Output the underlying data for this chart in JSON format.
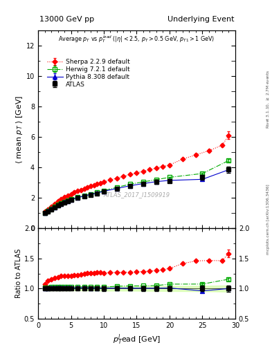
{
  "title_left": "13000 GeV pp",
  "title_right": "Underlying Event",
  "plot_title": "Average $p_T$ vs $p_T^{lead}$ ($|\\eta| < 2.5$, $p_T > 0.5$ GeV, $p_{T1} > 1$ GeV)",
  "ylabel_main": "$\\langle$ mean $p_T$ $\\rangle$ [GeV]",
  "ylabel_ratio": "Ratio to ATLAS",
  "xlabel": "$p_T^l$ead [GeV]",
  "watermark": "ATLAS_2017_I1509919",
  "right_label": "mcplots.cern.ch [arXiv:1306.3436]",
  "right_label2": "Rivet 3.1.10, $\\geq$ 2.7M events",
  "atlas_x": [
    1.0,
    1.5,
    2.0,
    2.5,
    3.0,
    3.5,
    4.0,
    4.5,
    5.0,
    6.0,
    7.0,
    8.0,
    9.0,
    10.0,
    12.0,
    14.0,
    16.0,
    18.0,
    20.0,
    25.0,
    29.0
  ],
  "atlas_y": [
    1.02,
    1.12,
    1.25,
    1.38,
    1.5,
    1.6,
    1.7,
    1.78,
    1.86,
    2.0,
    2.1,
    2.2,
    2.3,
    2.42,
    2.6,
    2.78,
    2.92,
    3.05,
    3.12,
    3.35,
    3.85
  ],
  "atlas_yerr": [
    0.03,
    0.04,
    0.04,
    0.04,
    0.05,
    0.05,
    0.05,
    0.06,
    0.06,
    0.06,
    0.07,
    0.07,
    0.08,
    0.09,
    0.09,
    0.1,
    0.11,
    0.12,
    0.13,
    0.15,
    0.2
  ],
  "herwig_x": [
    1.0,
    1.5,
    2.0,
    2.5,
    3.0,
    3.5,
    4.0,
    4.5,
    5.0,
    6.0,
    7.0,
    8.0,
    9.0,
    10.0,
    12.0,
    14.0,
    16.0,
    18.0,
    20.0,
    25.0,
    29.0
  ],
  "herwig_y": [
    1.03,
    1.14,
    1.28,
    1.42,
    1.54,
    1.65,
    1.74,
    1.82,
    1.9,
    2.05,
    2.16,
    2.26,
    2.36,
    2.48,
    2.7,
    2.9,
    3.05,
    3.2,
    3.35,
    3.6,
    4.45
  ],
  "herwig_yerr": [
    0.01,
    0.01,
    0.01,
    0.01,
    0.01,
    0.01,
    0.01,
    0.01,
    0.01,
    0.01,
    0.01,
    0.01,
    0.02,
    0.02,
    0.02,
    0.03,
    0.03,
    0.04,
    0.04,
    0.06,
    0.09
  ],
  "pythia_x": [
    1.0,
    1.5,
    2.0,
    2.5,
    3.0,
    3.5,
    4.0,
    4.5,
    5.0,
    6.0,
    7.0,
    8.0,
    9.0,
    10.0,
    12.0,
    14.0,
    16.0,
    18.0,
    20.0,
    25.0,
    29.0
  ],
  "pythia_y": [
    1.02,
    1.13,
    1.27,
    1.4,
    1.52,
    1.62,
    1.72,
    1.8,
    1.88,
    2.02,
    2.13,
    2.22,
    2.32,
    2.44,
    2.62,
    2.8,
    2.94,
    3.07,
    3.15,
    3.22,
    3.85
  ],
  "pythia_yerr": [
    0.005,
    0.005,
    0.005,
    0.005,
    0.005,
    0.005,
    0.005,
    0.005,
    0.005,
    0.005,
    0.005,
    0.005,
    0.005,
    0.01,
    0.01,
    0.01,
    0.01,
    0.02,
    0.02,
    0.02,
    0.04
  ],
  "sherpa_x": [
    1.0,
    1.5,
    2.0,
    2.5,
    3.0,
    3.5,
    4.0,
    4.5,
    5.0,
    5.5,
    6.0,
    6.5,
    7.0,
    7.5,
    8.0,
    8.5,
    9.0,
    9.5,
    10.0,
    11.0,
    12.0,
    13.0,
    14.0,
    15.0,
    16.0,
    17.0,
    18.0,
    19.0,
    20.0,
    22.0,
    24.0,
    26.0,
    28.0,
    29.0
  ],
  "sherpa_y": [
    1.1,
    1.26,
    1.44,
    1.62,
    1.78,
    1.93,
    2.05,
    2.16,
    2.26,
    2.36,
    2.45,
    2.53,
    2.61,
    2.69,
    2.77,
    2.84,
    2.91,
    2.98,
    3.05,
    3.18,
    3.3,
    3.42,
    3.54,
    3.64,
    3.75,
    3.85,
    3.96,
    4.06,
    4.16,
    4.55,
    4.82,
    5.1,
    5.45,
    6.1
  ],
  "sherpa_yerr": [
    0.01,
    0.01,
    0.01,
    0.01,
    0.01,
    0.01,
    0.01,
    0.01,
    0.01,
    0.01,
    0.01,
    0.01,
    0.01,
    0.01,
    0.01,
    0.01,
    0.01,
    0.01,
    0.01,
    0.01,
    0.01,
    0.01,
    0.02,
    0.02,
    0.02,
    0.02,
    0.02,
    0.03,
    0.05,
    0.06,
    0.07,
    0.08,
    0.09,
    0.25
  ],
  "atlas_color": "#000000",
  "herwig_color": "#00aa00",
  "pythia_color": "#0000cc",
  "sherpa_color": "#ff0000",
  "ylim_main": [
    0,
    13
  ],
  "ylim_ratio": [
    0.5,
    2.0
  ],
  "xlim": [
    0,
    30
  ],
  "atlas_band_color": "#ccff99",
  "atlas_band_alpha": 0.6
}
